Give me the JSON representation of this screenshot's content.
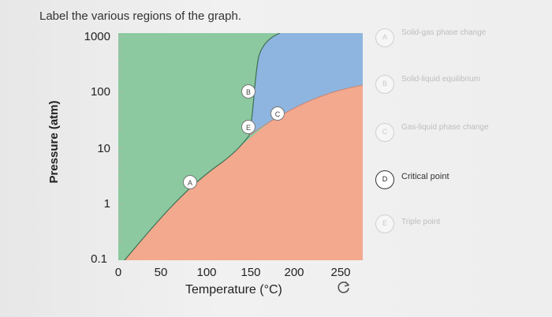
{
  "question": "Label the various regions of the graph.",
  "axes": {
    "y_label": "Pressure (atm)",
    "x_label": "Temperature (°C)",
    "y_ticks": [
      "1000",
      "100",
      "10",
      "1",
      "0.1"
    ],
    "x_ticks": [
      "0",
      "50",
      "100",
      "150",
      "200",
      "250"
    ]
  },
  "points": [
    {
      "letter": "A"
    },
    {
      "letter": "B"
    },
    {
      "letter": "C"
    },
    {
      "letter": "E"
    }
  ],
  "options": [
    {
      "letter": "A",
      "label": "Solid-gas phase change"
    },
    {
      "letter": "B",
      "label": "Solid-liquid equilibrium"
    },
    {
      "letter": "C",
      "label": "Gas-liquid phase change"
    },
    {
      "letter": "D",
      "label": "Critical point"
    },
    {
      "letter": "E",
      "label": "Triple point"
    }
  ],
  "colors": {
    "solid_region": "#8cc9a0",
    "liquid_region": "#8eb5df",
    "gas_region": "#f3a98e",
    "boundary": "#3f6f52"
  },
  "reset_icon": "refresh-icon"
}
